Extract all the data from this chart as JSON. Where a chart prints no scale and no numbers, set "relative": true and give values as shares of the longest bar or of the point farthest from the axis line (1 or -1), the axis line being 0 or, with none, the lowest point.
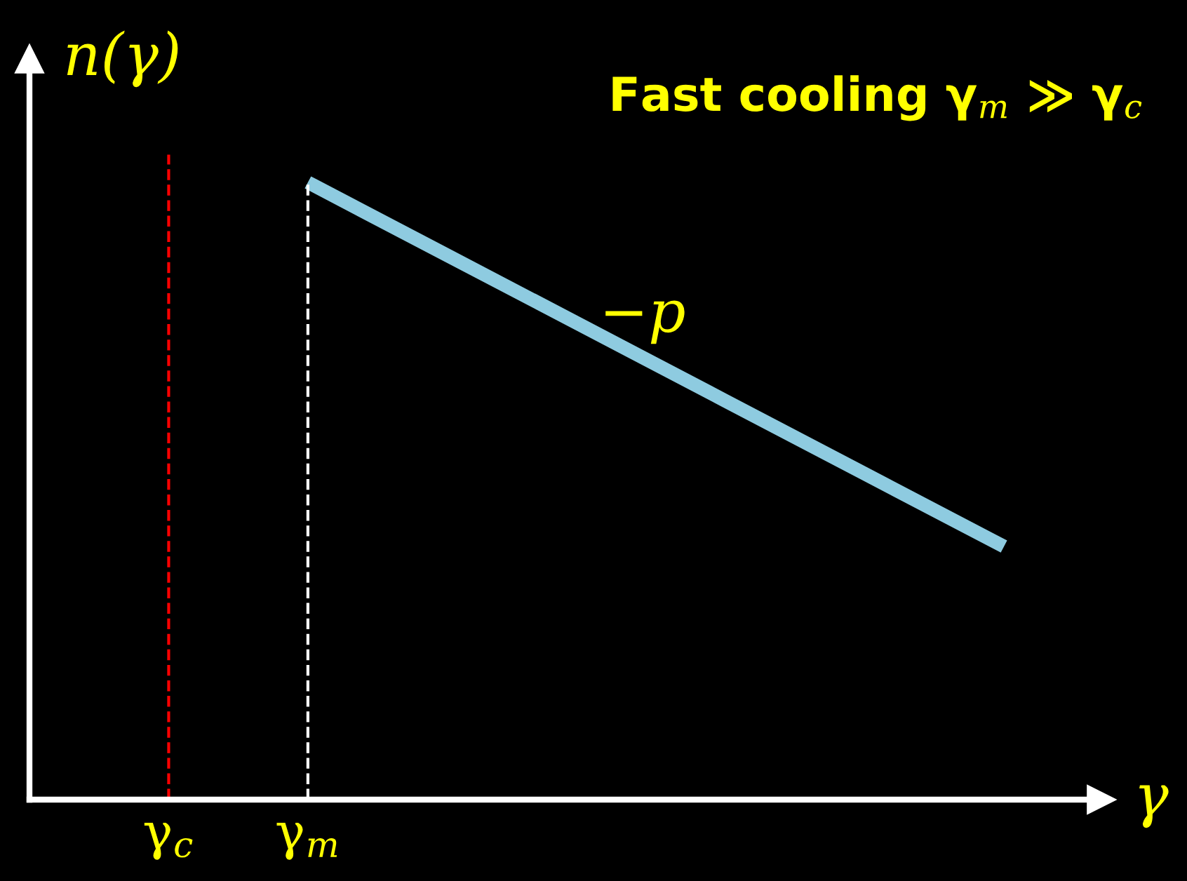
{
  "chart_data": {
    "type": "line",
    "relative": true,
    "title": "Fast cooling γ$_{m}$ ≫ γ$_{c}$",
    "xlabel": "γ",
    "ylabel": "n(γ)",
    "categories": [
      null,
      "γ$_{c}$",
      "γ$_{m}$",
      null,
      null,
      null,
      null,
      null,
      null
    ],
    "series": [
      {
        "color": "#8ecbe0",
        "values": [
          null,
          null,
          1,
          0.882,
          0.764,
          0.646,
          0.528,
          0.41,
          null
        ]
      }
    ],
    "ref_lines": [
      {
        "axis": "x",
        "value": "γ$_{c}$",
        "color": "#ff0000",
        "line_style": "dashed"
      },
      {
        "axis": "x",
        "value": "γ$_{m}$",
        "color": "#ffffff",
        "line_style": "dashed"
      }
    ],
    "annotations": [
      "−p"
    ],
    "grid": false,
    "legend": false
  }
}
